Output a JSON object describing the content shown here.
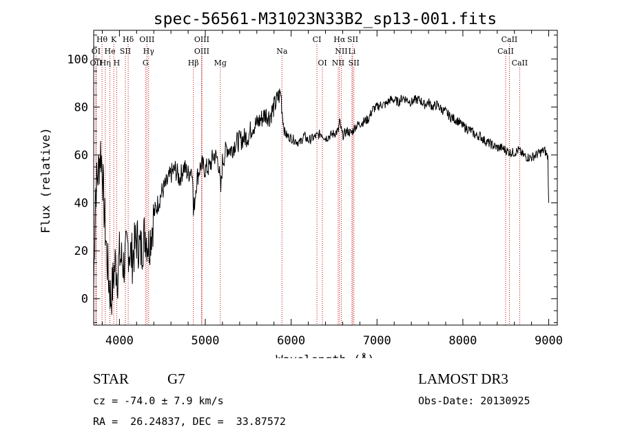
{
  "chart_data": {
    "type": "line",
    "title": "spec-56561-M31023N33B2_sp13-001.fits",
    "xlabel": "Wavelength (Å)",
    "ylabel": "Flux (relative)",
    "xlim": [
      3700,
      9100
    ],
    "ylim": [
      -11,
      112
    ],
    "x_ticks": [
      4000,
      5000,
      6000,
      7000,
      8000,
      9000
    ],
    "y_ticks": [
      0,
      20,
      40,
      60,
      80,
      100
    ],
    "series": [
      {
        "name": "flux",
        "x": [
          3700,
          3720,
          3750,
          3780,
          3800,
          3820,
          3850,
          3870,
          3900,
          3920,
          3950,
          3980,
          4000,
          4050,
          4100,
          4150,
          4200,
          4250,
          4300,
          4340,
          4380,
          4400,
          4450,
          4500,
          4550,
          4600,
          4650,
          4700,
          4750,
          4800,
          4850,
          4861,
          4900,
          4950,
          5000,
          5050,
          5100,
          5150,
          5180,
          5200,
          5250,
          5300,
          5350,
          5400,
          5450,
          5500,
          5550,
          5600,
          5650,
          5700,
          5750,
          5800,
          5850,
          5880,
          5900,
          5920,
          5950,
          6000,
          6050,
          6100,
          6150,
          6200,
          6250,
          6300,
          6350,
          6400,
          6450,
          6500,
          6550,
          6563,
          6600,
          6650,
          6700,
          6750,
          6800,
          6850,
          6900,
          6950,
          7000,
          7050,
          7100,
          7150,
          7200,
          7250,
          7300,
          7350,
          7400,
          7450,
          7500,
          7550,
          7600,
          7650,
          7700,
          7750,
          7800,
          7850,
          7900,
          7950,
          8000,
          8050,
          8100,
          8150,
          8200,
          8250,
          8300,
          8350,
          8400,
          8450,
          8500,
          8550,
          8600,
          8650,
          8700,
          8750,
          8800,
          8850,
          8900,
          8950,
          8990,
          9000
        ],
        "y": [
          5,
          45,
          52,
          62,
          55,
          38,
          20,
          10,
          0,
          5,
          15,
          10,
          18,
          14,
          22,
          17,
          25,
          20,
          28,
          22,
          30,
          35,
          40,
          45,
          48,
          52,
          54,
          50,
          55,
          52,
          55,
          35,
          50,
          56,
          54,
          55,
          60,
          58,
          45,
          57,
          63,
          62,
          65,
          66,
          67,
          68,
          72,
          73,
          75,
          77,
          76,
          80,
          84,
          86,
          76,
          70,
          68,
          67,
          66,
          65,
          68,
          66,
          67,
          68,
          69,
          67,
          68,
          69,
          70,
          74,
          68,
          70,
          69,
          72,
          73,
          74,
          75,
          79,
          80,
          81,
          81,
          83,
          83,
          82,
          84,
          83,
          82,
          83,
          83,
          81,
          82,
          80,
          81,
          79,
          78,
          76,
          75,
          74,
          72,
          71,
          70,
          68,
          68,
          66,
          65,
          64,
          63,
          63,
          62,
          61,
          61,
          62,
          60,
          59,
          59,
          60,
          61,
          62,
          59,
          40
        ]
      }
    ],
    "line_markers": [
      {
        "label": "Hθ",
        "x": 3797,
        "row": 0
      },
      {
        "label": "K",
        "x": 3934,
        "row": 0
      },
      {
        "label": "Hδ",
        "x": 4102,
        "row": 0
      },
      {
        "label": "OIII",
        "x": 4320,
        "row": 0
      },
      {
        "label": "OIII",
        "x": 4959,
        "row": 0
      },
      {
        "label": "CI",
        "x": 6300,
        "row": 0
      },
      {
        "label": "Hα",
        "x": 6563,
        "row": 0
      },
      {
        "label": "SII",
        "x": 6717,
        "row": 0
      },
      {
        "label": "CaII",
        "x": 8542,
        "row": 0
      },
      {
        "label": "OI",
        "x": 3727,
        "row": 1
      },
      {
        "label": "He",
        "x": 3889,
        "row": 1
      },
      {
        "label": "SII",
        "x": 4069,
        "row": 1
      },
      {
        "label": "Hγ",
        "x": 4340,
        "row": 1
      },
      {
        "label": "OIII",
        "x": 4959,
        "row": 1
      },
      {
        "label": "Na",
        "x": 5893,
        "row": 1
      },
      {
        "label": "NII",
        "x": 6584,
        "row": 1
      },
      {
        "label": "Li",
        "x": 6708,
        "row": 1
      },
      {
        "label": "CaII",
        "x": 8498,
        "row": 1
      },
      {
        "label": "OII",
        "x": 3727,
        "row": 2
      },
      {
        "label": "Hη",
        "x": 3835,
        "row": 2
      },
      {
        "label": "H",
        "x": 3968,
        "row": 2
      },
      {
        "label": "G",
        "x": 4304,
        "row": 2
      },
      {
        "label": "Hβ",
        "x": 4861,
        "row": 2
      },
      {
        "label": "Mg",
        "x": 5175,
        "row": 2
      },
      {
        "label": "OI",
        "x": 6364,
        "row": 2
      },
      {
        "label": "NII",
        "x": 6548,
        "row": 2
      },
      {
        "label": "SII",
        "x": 6731,
        "row": 2
      },
      {
        "label": "CaII",
        "x": 8662,
        "row": 2
      }
    ]
  },
  "info": {
    "object_class": "STAR",
    "subclass": "G7",
    "survey": "LAMOST DR3",
    "redshift": "cz = -74.0 ± 7.9 km/s",
    "obs_date": "Obs-Date: 20130925",
    "coords": "RA =  26.24837, DEC =  33.87572"
  }
}
